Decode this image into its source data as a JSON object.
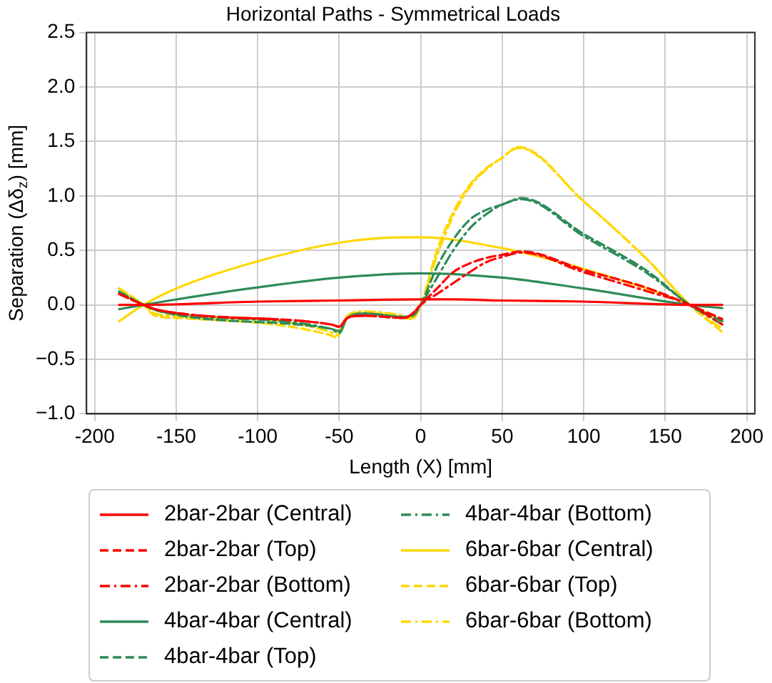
{
  "chart_data": {
    "type": "line",
    "title": "Horizontal Paths - Symmetrical Loads",
    "xlabel": "Length (X) [mm]",
    "ylabel": "Separation (Δδ$_{z}$) [mm]",
    "xlim": [
      -205,
      205
    ],
    "xticks": [
      -200,
      -150,
      -100,
      -50,
      0,
      50,
      100,
      150,
      200
    ],
    "ylim": [
      -1,
      2.5
    ],
    "yticks": [
      {
        "value": -1,
        "label": "−1.0"
      },
      {
        "value": -0.5,
        "label": "−0.5"
      },
      {
        "value": 0,
        "label": "0.0"
      },
      {
        "value": 0.5,
        "label": "0.5"
      },
      {
        "value": 1,
        "label": "1.0"
      },
      {
        "value": 1.5,
        "label": "1.5"
      },
      {
        "value": 2,
        "label": "2.0"
      },
      {
        "value": 2.5,
        "label": "2.5"
      }
    ],
    "grid": true,
    "legend": "bottom",
    "marker": "none",
    "series": [
      {
        "name": "2bar-2bar (Central)",
        "color": "#ff0000",
        "line_style": "solid",
        "x": [
          -185,
          -170,
          -100,
          -50,
          0,
          20,
          50,
          100,
          165,
          185
        ],
        "values": [
          0,
          0,
          0.03,
          0.04,
          0.05,
          0.05,
          0.04,
          0.03,
          0,
          0
        ]
      },
      {
        "name": "2bar-2bar (Top)",
        "color": "#ff0000",
        "line_style": "dashed",
        "x": [
          -185,
          -170,
          -160,
          -55,
          -50,
          -45,
          -35,
          -10,
          -5,
          0,
          10,
          20,
          30,
          40,
          50,
          62,
          100,
          140,
          165,
          185
        ],
        "values": [
          0.1,
          0,
          -0.05,
          -0.18,
          -0.2,
          -0.12,
          -0.1,
          -0.12,
          -0.08,
          0,
          0.15,
          0.3,
          0.38,
          0.43,
          0.46,
          0.49,
          0.32,
          0.15,
          0,
          -0.13
        ]
      },
      {
        "name": "2bar-2bar (Bottom)",
        "color": "#ff0000",
        "line_style": "dashdot",
        "x": [
          -185,
          -170,
          -160,
          -55,
          -50,
          -45,
          -35,
          -10,
          -5,
          0,
          10,
          20,
          30,
          40,
          50,
          62,
          100,
          140,
          165,
          185
        ],
        "values": [
          0.1,
          0,
          -0.05,
          -0.18,
          -0.2,
          -0.12,
          -0.1,
          -0.12,
          -0.08,
          0,
          0.1,
          0.2,
          0.3,
          0.39,
          0.44,
          0.48,
          0.3,
          0.12,
          0,
          -0.18
        ]
      },
      {
        "name": "4bar-4bar (Central)",
        "color": "#2e8b57",
        "line_style": "solid",
        "x": [
          -185,
          -170,
          -150,
          -100,
          -50,
          0,
          50,
          100,
          165,
          185
        ],
        "values": [
          -0.04,
          0,
          0.05,
          0.16,
          0.25,
          0.29,
          0.25,
          0.15,
          0,
          -0.03
        ]
      },
      {
        "name": "4bar-4bar (Top)",
        "color": "#2e8b57",
        "line_style": "dashed",
        "x": [
          -185,
          -170,
          -160,
          -55,
          -50,
          -45,
          -35,
          -10,
          -5,
          0,
          10,
          20,
          30,
          40,
          50,
          62,
          100,
          140,
          165,
          185
        ],
        "values": [
          0.12,
          0,
          -0.06,
          -0.22,
          -0.24,
          -0.12,
          -0.08,
          -0.11,
          -0.1,
          0,
          0.35,
          0.6,
          0.78,
          0.87,
          0.92,
          0.98,
          0.65,
          0.3,
          0,
          -0.15
        ]
      },
      {
        "name": "4bar-4bar (Bottom)",
        "color": "#2e8b57",
        "line_style": "dashdot",
        "x": [
          -185,
          -170,
          -160,
          -55,
          -50,
          -45,
          -35,
          -10,
          -5,
          0,
          10,
          20,
          30,
          40,
          50,
          62,
          100,
          140,
          165,
          185
        ],
        "values": [
          0.12,
          0,
          -0.06,
          -0.22,
          -0.26,
          -0.12,
          -0.08,
          -0.11,
          -0.1,
          0,
          0.25,
          0.5,
          0.7,
          0.83,
          0.92,
          0.97,
          0.63,
          0.28,
          0,
          -0.18
        ]
      },
      {
        "name": "6bar-6bar (Central)",
        "color": "#ffd700",
        "line_style": "solid",
        "x": [
          -185,
          -170,
          -150,
          -100,
          -50,
          -10,
          0,
          50,
          100,
          165,
          185
        ],
        "values": [
          -0.15,
          0,
          0.15,
          0.4,
          0.57,
          0.62,
          0.62,
          0.52,
          0.33,
          0,
          -0.15
        ]
      },
      {
        "name": "6bar-6bar (Top)",
        "color": "#ffd700",
        "line_style": "dashed",
        "x": [
          -185,
          -170,
          -163,
          -150,
          -55,
          -52,
          -45,
          -35,
          -10,
          -5,
          0,
          10,
          20,
          30,
          40,
          50,
          60,
          100,
          140,
          165,
          185
        ],
        "values": [
          0.15,
          0,
          -0.1,
          -0.12,
          -0.28,
          -0.3,
          -0.12,
          -0.07,
          -0.12,
          -0.13,
          0,
          0.5,
          0.85,
          1.1,
          1.25,
          1.35,
          1.45,
          0.95,
          0.4,
          0,
          -0.25
        ]
      },
      {
        "name": "6bar-6bar (Bottom)",
        "color": "#ffd700",
        "line_style": "dashdot",
        "x": [
          -185,
          -170,
          -163,
          -150,
          -55,
          -52,
          -45,
          -35,
          -10,
          -5,
          0,
          10,
          20,
          30,
          40,
          50,
          60,
          100,
          140,
          165,
          185
        ],
        "values": [
          0.15,
          0,
          -0.08,
          -0.1,
          -0.25,
          -0.28,
          -0.1,
          -0.06,
          -0.1,
          -0.12,
          0,
          0.45,
          0.82,
          1.08,
          1.24,
          1.35,
          1.44,
          0.95,
          0.4,
          0,
          -0.22
        ]
      }
    ]
  }
}
